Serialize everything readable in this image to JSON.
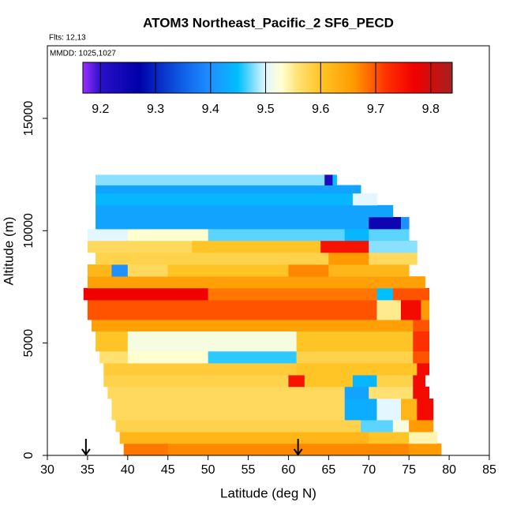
{
  "chart_data": {
    "type": "heatmap",
    "title": "ATOM3 Northeast_Pacific_2 SF6_PECD",
    "flights": "Flts: 12,13",
    "dates": "MMDD: 1025,1027",
    "x_label": "Latitude (deg N)",
    "y_label": "Altitude (m)",
    "xlim": [
      30,
      85
    ],
    "xticks": [
      30,
      35,
      40,
      45,
      50,
      55,
      60,
      65,
      70,
      75,
      80,
      85
    ],
    "ylim": [
      0,
      18230
    ],
    "yticks": [
      0,
      5000,
      10000,
      15000
    ],
    "clim": [
      9.168,
      9.839
    ],
    "cticks": [
      9.2,
      9.3,
      9.4,
      9.5,
      9.6,
      9.7,
      9.8
    ],
    "colorscale": [
      {
        "value": 9.168,
        "color": "#9b30ff"
      },
      {
        "value": 9.2,
        "color": "#2a10c8"
      },
      {
        "value": 9.27,
        "color": "#0000a8"
      },
      {
        "value": 9.35,
        "color": "#1060e8"
      },
      {
        "value": 9.4,
        "color": "#1e90ff"
      },
      {
        "value": 9.45,
        "color": "#00bfff"
      },
      {
        "value": 9.5,
        "color": "#e4f6ff"
      },
      {
        "value": 9.53,
        "color": "#ffffd0"
      },
      {
        "value": 9.56,
        "color": "#ffe070"
      },
      {
        "value": 9.6,
        "color": "#ffc425"
      },
      {
        "value": 9.66,
        "color": "#ff9a00"
      },
      {
        "value": 9.72,
        "color": "#ff3000"
      },
      {
        "value": 9.77,
        "color": "#f00000"
      },
      {
        "value": 9.839,
        "color": "#a52020"
      }
    ],
    "arrows_lat": [
      34.8,
      61.2
    ],
    "rows": [
      {
        "alt": [
          0,
          530
        ],
        "lat": [
          39.5,
          45,
          75,
          79
        ],
        "values": [
          9.68,
          9.67,
          9.66
        ]
      },
      {
        "alt": [
          530,
          1050
        ],
        "lat": [
          39,
          70,
          75,
          78.5
        ],
        "values": [
          9.62,
          9.6,
          9.54
        ]
      },
      {
        "alt": [
          1050,
          1580
        ],
        "lat": [
          38.5,
          69,
          73,
          75,
          78
        ],
        "values": [
          9.58,
          9.47,
          9.52,
          9.66
        ]
      },
      {
        "alt": [
          1580,
          2530
        ],
        "lat": [
          38,
          67,
          71,
          74,
          76,
          78
        ],
        "values": [
          9.57,
          9.43,
          9.5,
          9.62,
          9.76
        ]
      },
      {
        "alt": [
          2530,
          3060
        ],
        "lat": [
          37.5,
          67,
          70,
          75.5,
          77.5
        ],
        "values": [
          9.57,
          9.42,
          9.56,
          9.76
        ]
      },
      {
        "alt": [
          3060,
          3580
        ],
        "lat": [
          37,
          60,
          62,
          68,
          71,
          75.5,
          77
        ],
        "values": [
          9.58,
          9.75,
          9.6,
          9.44,
          9.58,
          9.76
        ]
      },
      {
        "alt": [
          3580,
          4110
        ],
        "lat": [
          37,
          61,
          76,
          77.5
        ],
        "values": [
          9.59,
          9.6,
          9.76
        ]
      },
      {
        "alt": [
          4110,
          4640
        ],
        "lat": [
          36.5,
          40,
          50,
          61,
          75.5,
          77.5
        ],
        "values": [
          9.56,
          9.53,
          9.46,
          9.58,
          9.7
        ]
      },
      {
        "alt": [
          4640,
          5530
        ],
        "lat": [
          36,
          40,
          61,
          75.5,
          77.5
        ],
        "values": [
          9.6,
          9.52,
          9.6,
          9.72
        ]
      },
      {
        "alt": [
          5530,
          6040
        ],
        "lat": [
          35.5,
          75.5,
          77.5
        ],
        "values": [
          9.65,
          9.7
        ]
      },
      {
        "alt": [
          6040,
          6920
        ],
        "lat": [
          35,
          71,
          74,
          76.5,
          77.5
        ],
        "values": [
          9.7,
          9.55,
          9.76,
          9.66
        ]
      },
      {
        "alt": [
          6920,
          7450
        ],
        "lat": [
          34.5,
          50,
          71,
          73,
          77.5
        ],
        "values": [
          9.77,
          9.68,
          9.45,
          9.7
        ]
      },
      {
        "alt": [
          7450,
          7970
        ],
        "lat": [
          35,
          77
        ],
        "values": [
          9.65
        ]
      },
      {
        "alt": [
          7970,
          8500
        ],
        "lat": [
          35,
          38,
          40,
          45,
          60,
          65,
          75
        ],
        "values": [
          9.62,
          9.4,
          9.57,
          9.6,
          9.67,
          9.62
        ]
      },
      {
        "alt": [
          8500,
          9030
        ],
        "lat": [
          36,
          65,
          70,
          76
        ],
        "values": [
          9.58,
          9.66,
          9.57
        ]
      },
      {
        "alt": [
          9030,
          9560
        ],
        "lat": [
          35,
          48,
          64,
          70,
          76
        ],
        "values": [
          9.57,
          9.6,
          9.75,
          9.48
        ]
      },
      {
        "alt": [
          9560,
          10080
        ],
        "lat": [
          35,
          40,
          50,
          67,
          70,
          75
        ],
        "values": [
          9.5,
          9.53,
          9.47,
          9.44,
          9.47
        ]
      },
      {
        "alt": [
          10080,
          10610
        ],
        "lat": [
          36,
          70,
          74,
          75
        ],
        "values": [
          9.42,
          9.25,
          9.4
        ]
      },
      {
        "alt": [
          10610,
          11140
        ],
        "lat": [
          36,
          73
        ],
        "values": [
          9.42
        ]
      },
      {
        "alt": [
          11140,
          11670
        ],
        "lat": [
          36,
          68,
          71
        ],
        "values": [
          9.44,
          9.5
        ]
      },
      {
        "alt": [
          11670,
          12030
        ],
        "lat": [
          36,
          69
        ],
        "values": [
          9.42
        ]
      },
      {
        "alt": [
          12030,
          12490
        ],
        "lat": [
          36,
          64.5,
          65.5,
          66
        ],
        "values": [
          9.48,
          9.22,
          9.45
        ]
      }
    ]
  }
}
